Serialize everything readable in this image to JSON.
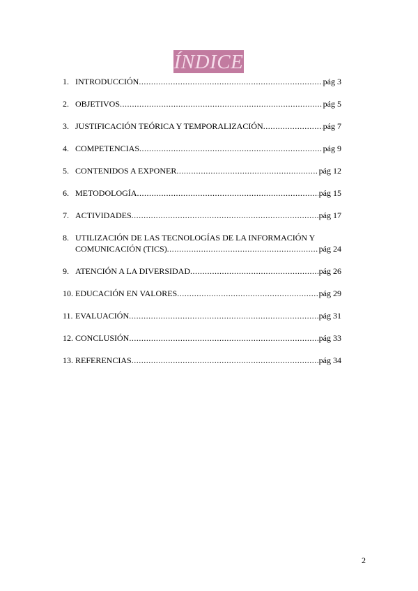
{
  "title": "ÍNDICE",
  "entries": [
    {
      "num": "1.",
      "label": "INTRODUCCIÓN",
      "page": "pág 3"
    },
    {
      "num": "2.",
      "label": "OBJETIVOS ",
      "page": "pág 5"
    },
    {
      "num": "3.",
      "label": "JUSTIFICACIÓN TEÓRICA Y TEMPORALIZACIÓN",
      "page": "pág 7"
    },
    {
      "num": "4.",
      "label": "COMPETENCIAS",
      "page": "pág 9"
    },
    {
      "num": "5.",
      "label": "CONTENIDOS A EXPONER",
      "page": "pág 12"
    },
    {
      "num": "6.",
      "label": "METODOLOGÍA",
      "page": "pág 15"
    },
    {
      "num": "7.",
      "label": "ACTIVIDADES",
      "page": "pág 17"
    },
    {
      "num": "8.",
      "label_line1": "UTILIZACIÓN DE LAS TECNOLOGÍAS DE LA INFORMACIÓN Y",
      "label": "COMUNICACIÓN (TICS)",
      "page": "pág 24"
    },
    {
      "num": "9.",
      "label": "ATENCIÓN A LA DIVERSIDAD",
      "page": "pág 26"
    },
    {
      "num": "10.",
      "label": "EDUCACIÓN EN VALORES",
      "page": "pág 29"
    },
    {
      "num": "11.",
      "label": "EVALUACIÓN",
      "page": "pág 31"
    },
    {
      "num": "12.",
      "label": "CONCLUSIÓN",
      "page": "pág 33"
    },
    {
      "num": "13.",
      "label": "REFERENCIAS",
      "page": "pág 34"
    }
  ],
  "page_number": "2",
  "colors": {
    "title_bg": "#c27ba0",
    "title_text": "#f6dcea"
  }
}
